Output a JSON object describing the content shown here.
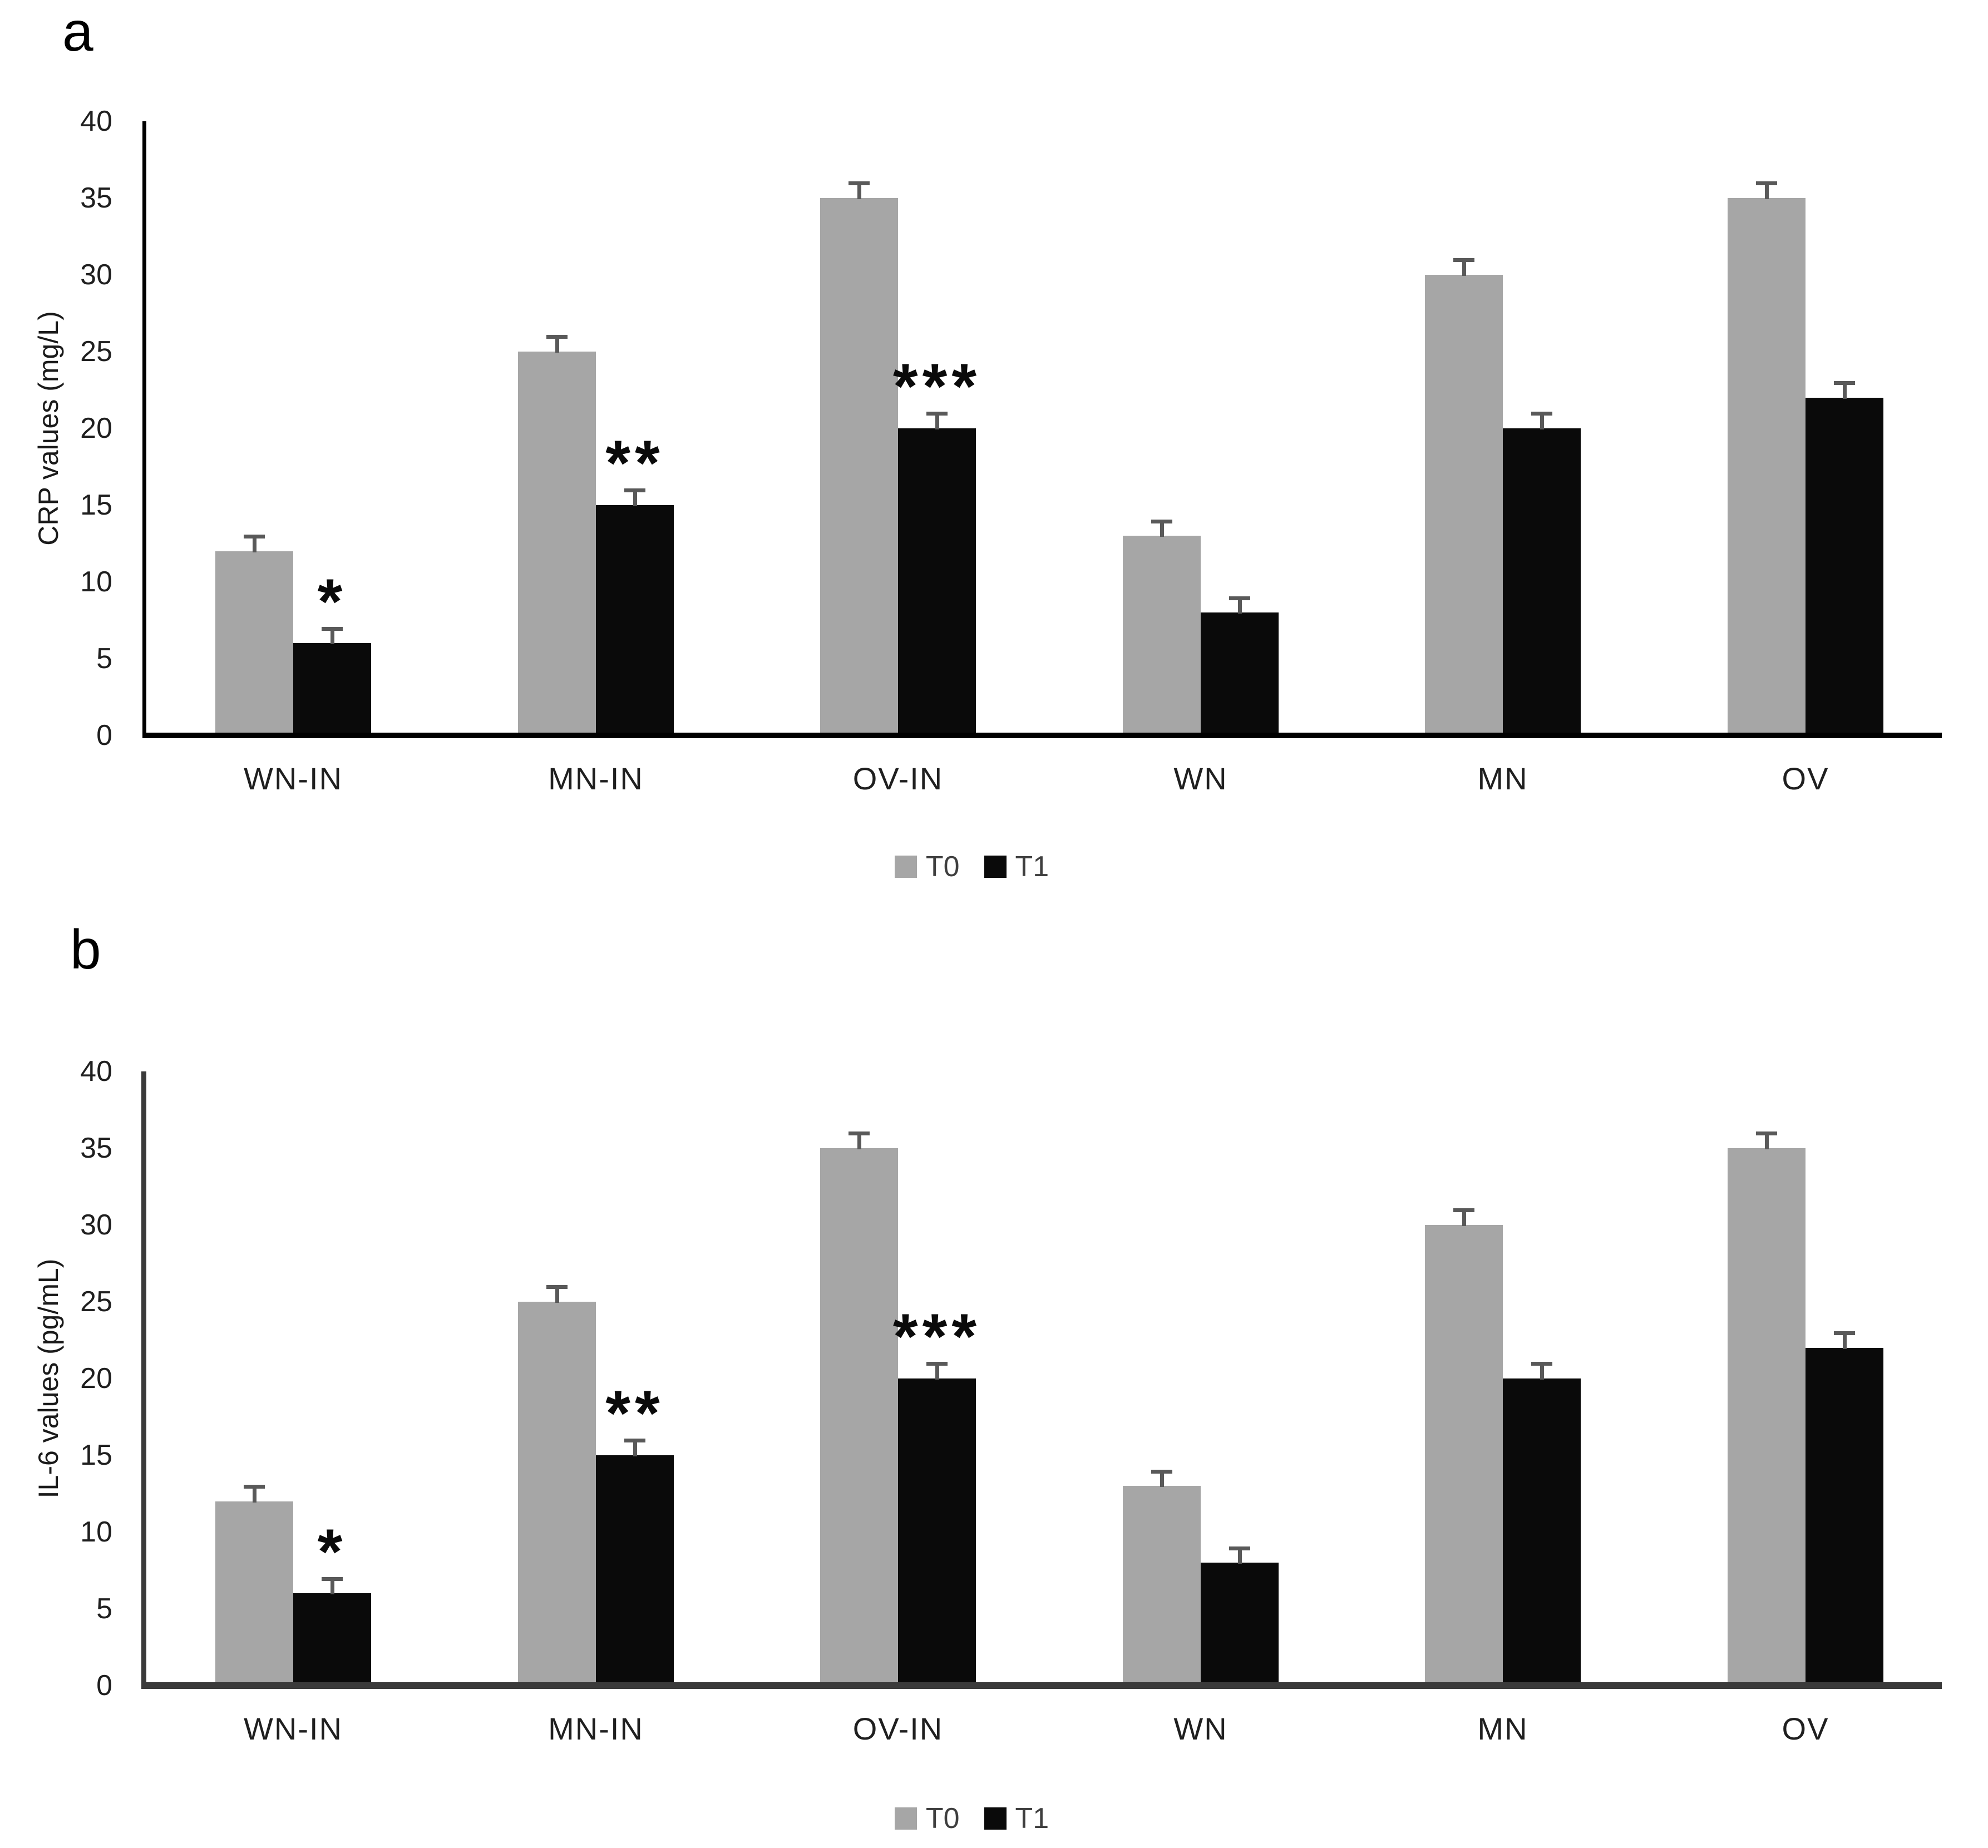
{
  "colors": {
    "bar_t0": "#a6a6a6",
    "bar_t1": "#0a0a0a",
    "error_bar": "#595959",
    "axis_panel_a": "#000000",
    "axis_panel_b": "#3a3a3a",
    "text": "#1f1f1f",
    "legend_text": "#3f3f3f",
    "background": "#ffffff"
  },
  "chart_data": [
    {
      "type": "bar",
      "panel_label": "a",
      "title": "",
      "xlabel": "",
      "ylabel": "CRP values (mg/L)",
      "ylim": [
        0,
        40
      ],
      "yticks": [
        0,
        5,
        10,
        15,
        20,
        25,
        30,
        35,
        40
      ],
      "grid": false,
      "legend_position": "bottom",
      "legend_entries": [
        "T0",
        "T1"
      ],
      "categories": [
        "WN-IN",
        "MN-IN",
        "OV-IN",
        "WN",
        "MN",
        "OV"
      ],
      "series": [
        {
          "name": "T0",
          "color": "#a6a6a6",
          "values": [
            12,
            25,
            35,
            13,
            30,
            35
          ],
          "errors": [
            1,
            1,
            1,
            1,
            1,
            1
          ]
        },
        {
          "name": "T1",
          "color": "#0a0a0a",
          "values": [
            6,
            15,
            20,
            8,
            20,
            22
          ],
          "errors": [
            1,
            1,
            1,
            1,
            1,
            1
          ]
        }
      ],
      "significance": {
        "on_series": "T1",
        "labels": [
          "*",
          "**",
          "***",
          "",
          "",
          ""
        ]
      }
    },
    {
      "type": "bar",
      "panel_label": "b",
      "title": "",
      "xlabel": "",
      "ylabel": "IL-6 values (pg/mL)",
      "ylim": [
        0,
        40
      ],
      "yticks": [
        0,
        5,
        10,
        15,
        20,
        25,
        30,
        35,
        40
      ],
      "grid": false,
      "legend_position": "bottom",
      "legend_entries": [
        "T0",
        "T1"
      ],
      "categories": [
        "WN-IN",
        "MN-IN",
        "OV-IN",
        "WN",
        "MN",
        "OV"
      ],
      "series": [
        {
          "name": "T0",
          "color": "#a6a6a6",
          "values": [
            12,
            25,
            35,
            13,
            30,
            35
          ],
          "errors": [
            1,
            1,
            1,
            1,
            1,
            1
          ]
        },
        {
          "name": "T1",
          "color": "#0a0a0a",
          "values": [
            6,
            15,
            20,
            8,
            20,
            22
          ],
          "errors": [
            1,
            1,
            1,
            1,
            1,
            1
          ]
        }
      ],
      "significance": {
        "on_series": "T1",
        "labels": [
          "*",
          "**",
          "***",
          "",
          "",
          ""
        ]
      }
    }
  ]
}
